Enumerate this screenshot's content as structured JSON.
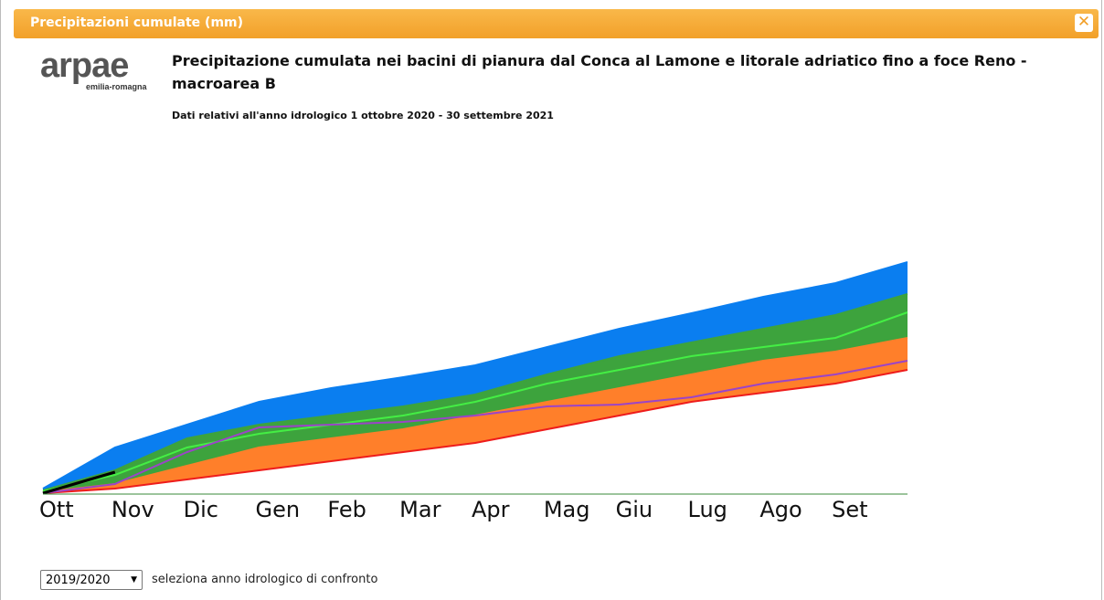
{
  "header": {
    "title": "Precipitazioni cumulate (mm)"
  },
  "logo": {
    "name": "arpae",
    "region": "emilia-romagna"
  },
  "chart_data": {
    "type": "line",
    "title": "Precipitazione cumulata nei bacini di pianura dal Conca al Lamone e litorale adriatico fino a foce Reno - macroarea B",
    "subtitle": "Dati relativi all'anno idrologico 1 ottobre 2020 - 30 settembre 2021",
    "categories": [
      "Ott",
      "Nov",
      "Dic",
      "Gen",
      "Feb",
      "Mar",
      "Apr",
      "Mag",
      "Giu",
      "Lug",
      "Ago",
      "Set",
      null
    ],
    "ylim": [
      0,
      1200
    ],
    "series": [
      {
        "color": "#0a7ef0",
        "fill": true,
        "values": [
          20,
          200,
          300,
          400,
          460,
          508,
          560,
          640,
          720,
          788,
          860,
          920,
          1012
        ]
      },
      {
        "color": "#3da33d",
        "fill": true,
        "values": [
          12,
          100,
          240,
          300,
          340,
          380,
          432,
          520,
          600,
          660,
          720,
          780,
          872
        ]
      },
      {
        "color": "#ff7f2a",
        "fill": true,
        "values": [
          4,
          40,
          120,
          200,
          240,
          280,
          340,
          400,
          460,
          520,
          580,
          620,
          680
        ]
      },
      {
        "color": "#ee1c1c",
        "fill": "#ffffff",
        "values": [
          0,
          20,
          60,
          100,
          140,
          180,
          220,
          280,
          340,
          400,
          440,
          480,
          540
        ]
      },
      {
        "color": "#44ee44",
        "fill": false,
        "values": [
          8,
          80,
          200,
          260,
          300,
          340,
          400,
          480,
          540,
          600,
          640,
          680,
          792
        ]
      },
      {
        "color": "#9b44c8",
        "fill": false,
        "values": [
          0,
          40,
          180,
          288,
          300,
          312,
          340,
          380,
          388,
          420,
          480,
          520,
          580
        ]
      },
      {
        "color": "#000000",
        "fill": false,
        "values": [
          0,
          92,
          null,
          null,
          null,
          null,
          null,
          null,
          null,
          null,
          null,
          null,
          null
        ]
      }
    ]
  },
  "controls": {
    "select": "2019/2020",
    "label": "seleziona anno idrologico di confronto"
  }
}
